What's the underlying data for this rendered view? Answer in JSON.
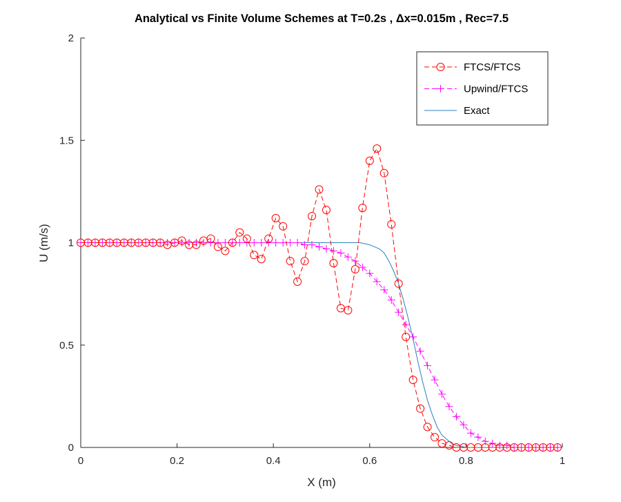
{
  "chart_data": {
    "type": "line",
    "title": "Analytical vs Finite Volume Schemes at T=0.2s , Δx=0.015m , Rec=7.5",
    "xlabel": "X (m)",
    "ylabel": "U (m/s)",
    "xlim": [
      0,
      1
    ],
    "ylim": [
      0,
      2
    ],
    "xticks": [
      0,
      0.2,
      0.4,
      0.6,
      0.8,
      1
    ],
    "xtick_labels": [
      "0",
      "0.2",
      "0.4",
      "0.6",
      "0.8",
      "1"
    ],
    "yticks": [
      0,
      0.5,
      1,
      1.5,
      2
    ],
    "ytick_labels": [
      "0",
      "0.5",
      "1",
      "1.5",
      "2"
    ],
    "grid": false,
    "legend_position": "top-right",
    "series": [
      {
        "name": "FTCS/FTCS",
        "color": "#ff0000",
        "line_style": "dashed",
        "marker": "circle",
        "x": [
          0.0,
          0.015,
          0.03,
          0.045,
          0.06,
          0.075,
          0.09,
          0.105,
          0.12,
          0.135,
          0.15,
          0.165,
          0.18,
          0.195,
          0.21,
          0.225,
          0.24,
          0.255,
          0.27,
          0.285,
          0.3,
          0.315,
          0.33,
          0.345,
          0.36,
          0.375,
          0.39,
          0.405,
          0.42,
          0.435,
          0.45,
          0.465,
          0.48,
          0.495,
          0.51,
          0.525,
          0.54,
          0.555,
          0.57,
          0.585,
          0.6,
          0.615,
          0.63,
          0.645,
          0.66,
          0.675,
          0.69,
          0.705,
          0.72,
          0.735,
          0.75,
          0.765,
          0.78,
          0.795,
          0.81,
          0.825,
          0.84,
          0.855,
          0.87,
          0.885,
          0.9,
          0.915,
          0.93,
          0.945,
          0.96,
          0.975,
          0.99
        ],
        "y": [
          1.0,
          1.0,
          1.0,
          1.0,
          1.0,
          1.0,
          1.0,
          1.0,
          1.0,
          1.0,
          1.0,
          1.0,
          0.99,
          1.0,
          1.01,
          0.99,
          0.99,
          1.01,
          1.02,
          0.98,
          0.96,
          1.0,
          1.05,
          1.02,
          0.94,
          0.92,
          1.02,
          1.12,
          1.08,
          0.91,
          0.81,
          0.91,
          1.13,
          1.26,
          1.16,
          0.9,
          0.68,
          0.67,
          0.87,
          1.17,
          1.4,
          1.46,
          1.34,
          1.09,
          0.8,
          0.54,
          0.33,
          0.19,
          0.1,
          0.05,
          0.02,
          0.01,
          0.0,
          0.0,
          0.0,
          0.0,
          0.0,
          0.0,
          0.0,
          0.0,
          0.0,
          0.0,
          0.0,
          0.0,
          0.0,
          0.0,
          0.0
        ]
      },
      {
        "name": "Upwind/FTCS",
        "color": "#ff00ff",
        "line_style": "dashed",
        "marker": "plus",
        "x": [
          0.0,
          0.015,
          0.03,
          0.045,
          0.06,
          0.075,
          0.09,
          0.105,
          0.12,
          0.135,
          0.15,
          0.165,
          0.18,
          0.195,
          0.21,
          0.225,
          0.24,
          0.255,
          0.27,
          0.285,
          0.3,
          0.315,
          0.33,
          0.345,
          0.36,
          0.375,
          0.39,
          0.405,
          0.42,
          0.435,
          0.45,
          0.465,
          0.48,
          0.495,
          0.51,
          0.525,
          0.54,
          0.555,
          0.57,
          0.585,
          0.6,
          0.615,
          0.63,
          0.645,
          0.66,
          0.675,
          0.69,
          0.705,
          0.72,
          0.735,
          0.75,
          0.765,
          0.78,
          0.795,
          0.81,
          0.825,
          0.84,
          0.855,
          0.87,
          0.885,
          0.9,
          0.915,
          0.93,
          0.945,
          0.96,
          0.975,
          0.99
        ],
        "y": [
          1.0,
          1.0,
          1.0,
          1.0,
          1.0,
          1.0,
          1.0,
          1.0,
          1.0,
          1.0,
          1.0,
          1.0,
          1.0,
          1.0,
          1.0,
          1.0,
          1.0,
          1.0,
          1.0,
          1.0,
          1.0,
          1.0,
          1.0,
          1.0,
          1.0,
          1.0,
          1.0,
          1.0,
          1.0,
          1.0,
          1.0,
          0.99,
          0.99,
          0.98,
          0.97,
          0.96,
          0.95,
          0.93,
          0.91,
          0.88,
          0.85,
          0.81,
          0.77,
          0.72,
          0.66,
          0.6,
          0.54,
          0.47,
          0.4,
          0.33,
          0.26,
          0.2,
          0.15,
          0.11,
          0.07,
          0.05,
          0.03,
          0.02,
          0.01,
          0.01,
          0.0,
          0.0,
          0.0,
          0.0,
          0.0,
          0.0,
          0.0
        ]
      },
      {
        "name": "Exact",
        "color": "#2a7fc0",
        "line_style": "solid",
        "marker": "none",
        "x": [
          0.0,
          0.02,
          0.04,
          0.06,
          0.08,
          0.1,
          0.12,
          0.14,
          0.16,
          0.18,
          0.2,
          0.22,
          0.24,
          0.26,
          0.28,
          0.3,
          0.32,
          0.34,
          0.36,
          0.38,
          0.4,
          0.42,
          0.44,
          0.46,
          0.48,
          0.5,
          0.52,
          0.54,
          0.56,
          0.58,
          0.6,
          0.61,
          0.62,
          0.63,
          0.64,
          0.65,
          0.66,
          0.67,
          0.68,
          0.69,
          0.7,
          0.71,
          0.72,
          0.73,
          0.74,
          0.75,
          0.76,
          0.77,
          0.78,
          0.79,
          0.8,
          0.82,
          0.84,
          0.86,
          0.88,
          0.9,
          0.92,
          0.94,
          0.96,
          0.98,
          1.0
        ],
        "y": [
          1.0,
          1.0,
          1.0,
          1.0,
          1.0,
          1.0,
          1.0,
          1.0,
          1.0,
          1.0,
          1.0,
          1.0,
          1.0,
          1.0,
          1.0,
          1.0,
          1.0,
          1.0,
          1.0,
          1.0,
          1.0,
          1.0,
          1.0,
          1.0,
          1.0,
          1.0,
          1.0,
          1.0,
          1.0,
          1.0,
          0.99,
          0.98,
          0.97,
          0.95,
          0.91,
          0.86,
          0.8,
          0.72,
          0.63,
          0.53,
          0.42,
          0.32,
          0.23,
          0.16,
          0.1,
          0.06,
          0.04,
          0.02,
          0.01,
          0.005,
          0.0,
          0.0,
          0.0,
          0.0,
          0.0,
          0.0,
          0.0,
          0.0,
          0.0,
          0.0,
          0.0
        ]
      }
    ]
  }
}
